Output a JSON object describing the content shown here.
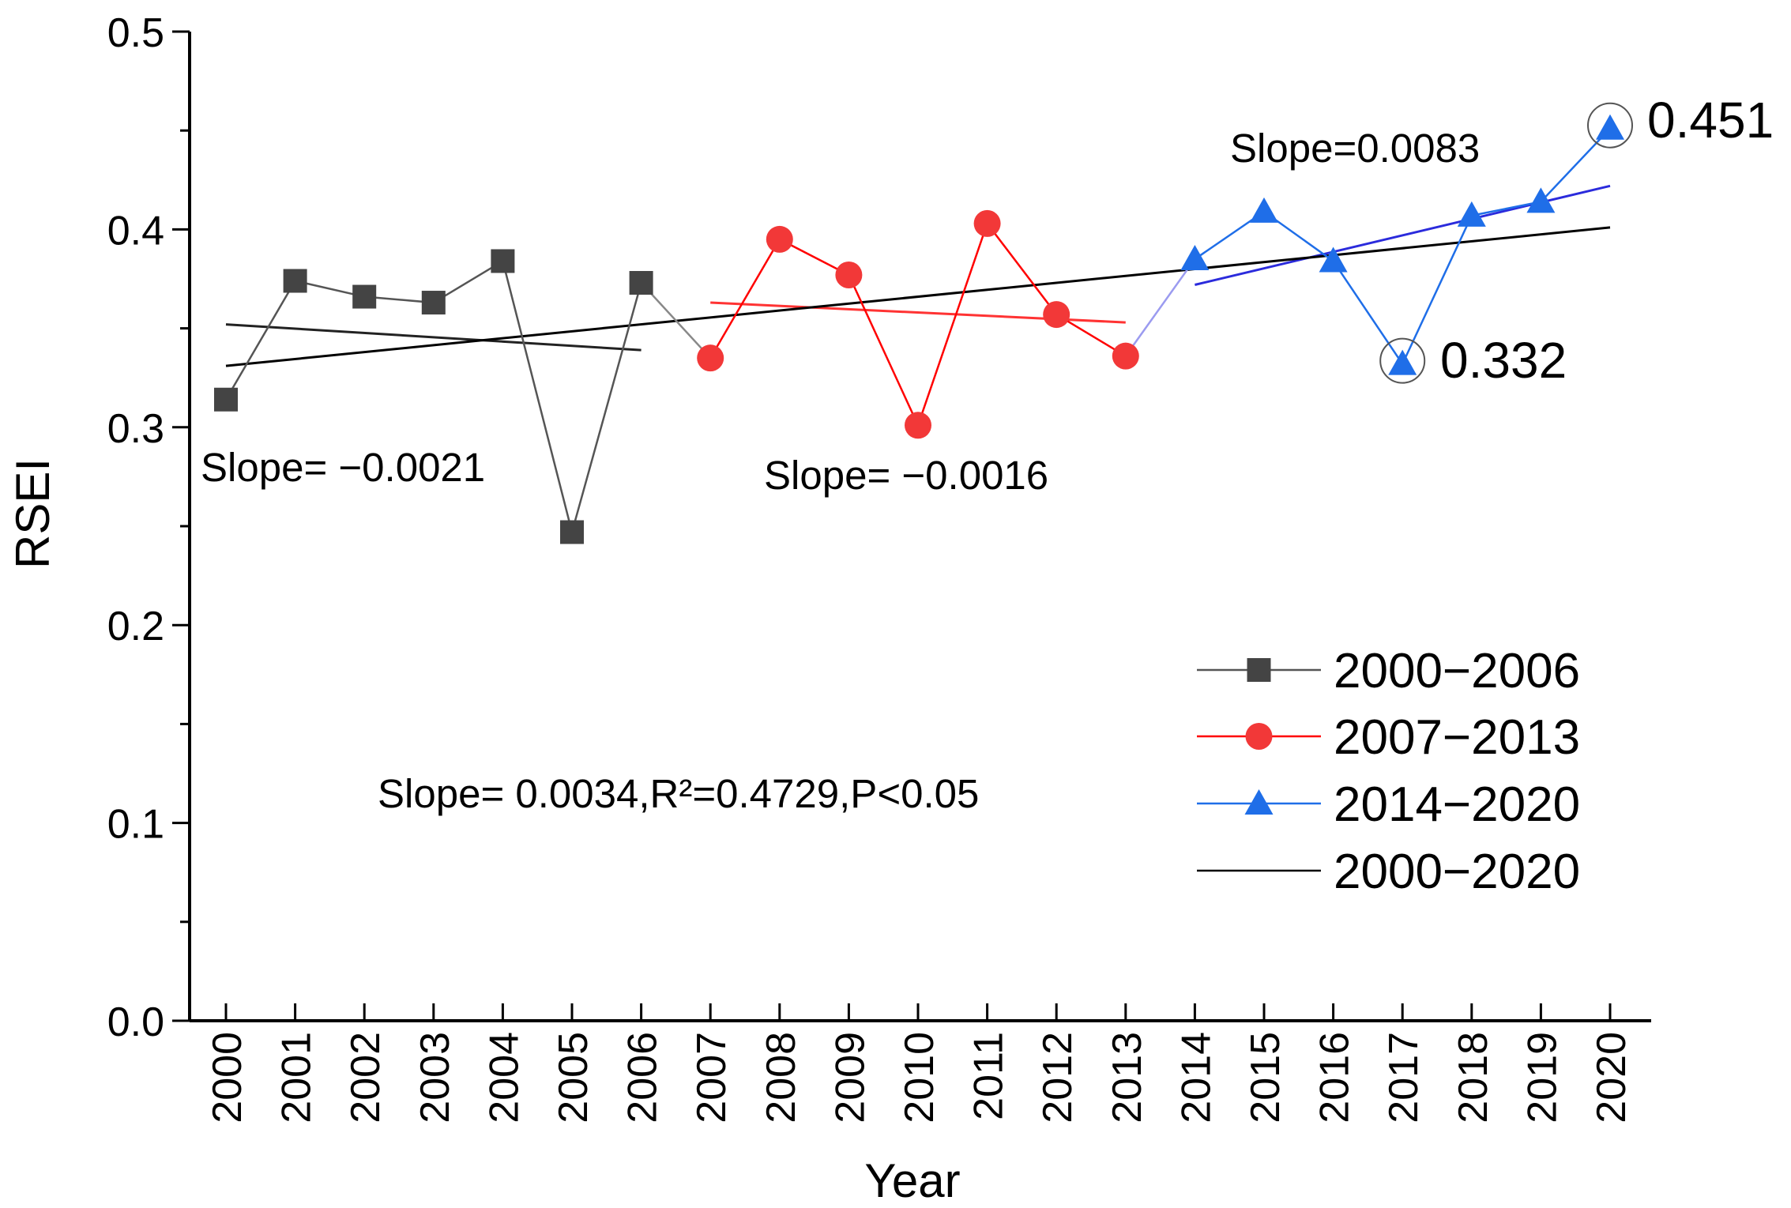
{
  "chart_data": {
    "type": "line",
    "ylabel": "RSEI",
    "xlabel": "Year",
    "ylim": [
      0,
      0.5
    ],
    "yticks": [
      "0.0",
      "0.1",
      "0.2",
      "0.3",
      "0.4",
      "0.5"
    ],
    "categories": [
      "2000",
      "2001",
      "2002",
      "2003",
      "2004",
      "2005",
      "2006",
      "2007",
      "2008",
      "2009",
      "2010",
      "2011",
      "2012",
      "2013",
      "2014",
      "2015",
      "2016",
      "2017",
      "2018",
      "2019",
      "2020"
    ],
    "series": [
      {
        "name": "2000−2006",
        "color": "#555555",
        "marker": "square",
        "x": [
          2000,
          2001,
          2002,
          2003,
          2004,
          2005,
          2006
        ],
        "values": [
          0.314,
          0.374,
          0.366,
          0.363,
          0.384,
          0.247,
          0.373
        ]
      },
      {
        "name": "2007−2013",
        "color": "#ff0000",
        "marker": "circle",
        "x": [
          2007,
          2008,
          2009,
          2010,
          2011,
          2012,
          2013
        ],
        "values": [
          0.335,
          0.395,
          0.377,
          0.301,
          0.403,
          0.357,
          0.336
        ]
      },
      {
        "name": "2014−2020",
        "color": "#1f6ee8",
        "marker": "triangle",
        "x": [
          2014,
          2015,
          2016,
          2017,
          2018,
          2019,
          2020
        ],
        "values": [
          0.385,
          0.409,
          0.384,
          0.332,
          0.407,
          0.414,
          0.451
        ]
      },
      {
        "name": "2000−2020",
        "color": "#000000",
        "marker": "none",
        "x": [],
        "values": []
      }
    ],
    "connectors": [
      {
        "color": "#888888",
        "from": [
          2006,
          0.373
        ],
        "to": [
          2007,
          0.335
        ]
      },
      {
        "color": "#9b9bf0",
        "from": [
          2013,
          0.336
        ],
        "to": [
          2014,
          0.385
        ]
      }
    ],
    "trendlines": [
      {
        "color": "#222222",
        "x": [
          2000,
          2006
        ],
        "y": [
          0.352,
          0.339
        ]
      },
      {
        "color": "#ff3333",
        "x": [
          2007,
          2013
        ],
        "y": [
          0.363,
          0.353
        ]
      },
      {
        "color": "#2b2bdc",
        "x": [
          2014,
          2020
        ],
        "y": [
          0.372,
          0.422
        ]
      },
      {
        "color": "#000000",
        "x": [
          2000,
          2020
        ],
        "y": [
          0.331,
          0.401
        ]
      }
    ],
    "annotations": {
      "slope_2000_2006": "Slope= −0.0021",
      "slope_2007_2013": "Slope= −0.0016",
      "slope_2014_2020": "Slope=0.0083",
      "slope_overall": "Slope= 0.0034,R²=0.4729,P<0.05",
      "max_value": "0.451",
      "min_value": "0.332"
    },
    "highlighted_points": [
      [
        2017,
        0.332
      ],
      [
        2020,
        0.451
      ]
    ],
    "legend_position": "right-middle"
  }
}
